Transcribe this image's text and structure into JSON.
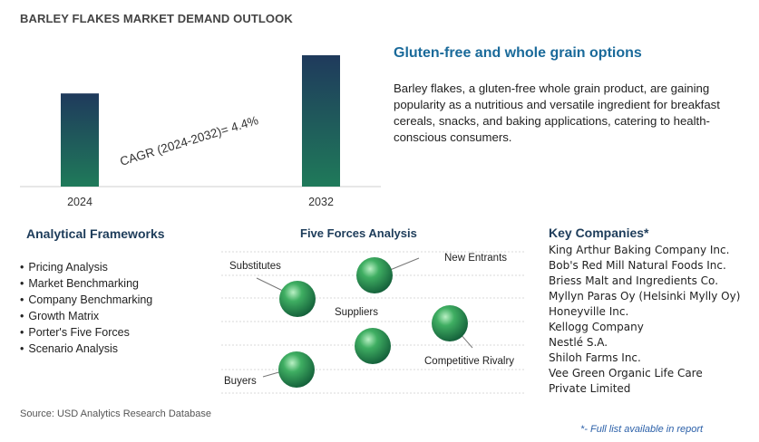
{
  "title": "BARLEY FLAKES MARKET DEMAND OUTLOOK",
  "chart_data": {
    "type": "bar",
    "categories": [
      "2024",
      "2032"
    ],
    "values": [
      1.0,
      1.41
    ],
    "annotation": "CAGR (2024-2032)=   4.4%",
    "cagr_percent": 4.4,
    "colors": {
      "bar_top": "#1f3a5c",
      "bar_bottom": "#1f7a5a"
    }
  },
  "insight": {
    "title": "Gluten-free and whole grain options",
    "body": "Barley flakes, a gluten-free whole grain product, are gaining popularity as a nutritious and versatile ingredient for breakfast cereals, snacks, and baking applications, catering to health-conscious consumers."
  },
  "analytical_frameworks": {
    "title": "Analytical Frameworks",
    "items": [
      "Pricing Analysis",
      "Market Benchmarking",
      "Company Benchmarking",
      "Growth Matrix",
      "Porter's Five Forces",
      "Scenario Analysis"
    ]
  },
  "five_forces": {
    "title": "Five Forces Analysis",
    "labels": {
      "substitutes": "Substitutes",
      "new_entrants": "New Entrants",
      "suppliers": "Suppliers",
      "competitive_rivalry": "Competitive Rivalry",
      "buyers": "Buyers"
    }
  },
  "key_companies": {
    "title": "Key Companies*",
    "items": [
      "King Arthur Baking Company Inc.",
      "Bob's Red Mill Natural Foods Inc.",
      "Briess Malt and Ingredients Co.",
      "Myllyn Paras Oy (Helsinki Mylly Oy)",
      "Honeyville Inc.",
      "Kellogg Company",
      "Nestlé S.A.",
      "Shiloh Farms Inc.",
      "Vee Green Organic Life Care Private Limited"
    ]
  },
  "source": "Source: USD Analytics Research Database",
  "footnote": "*- Full list available in report"
}
